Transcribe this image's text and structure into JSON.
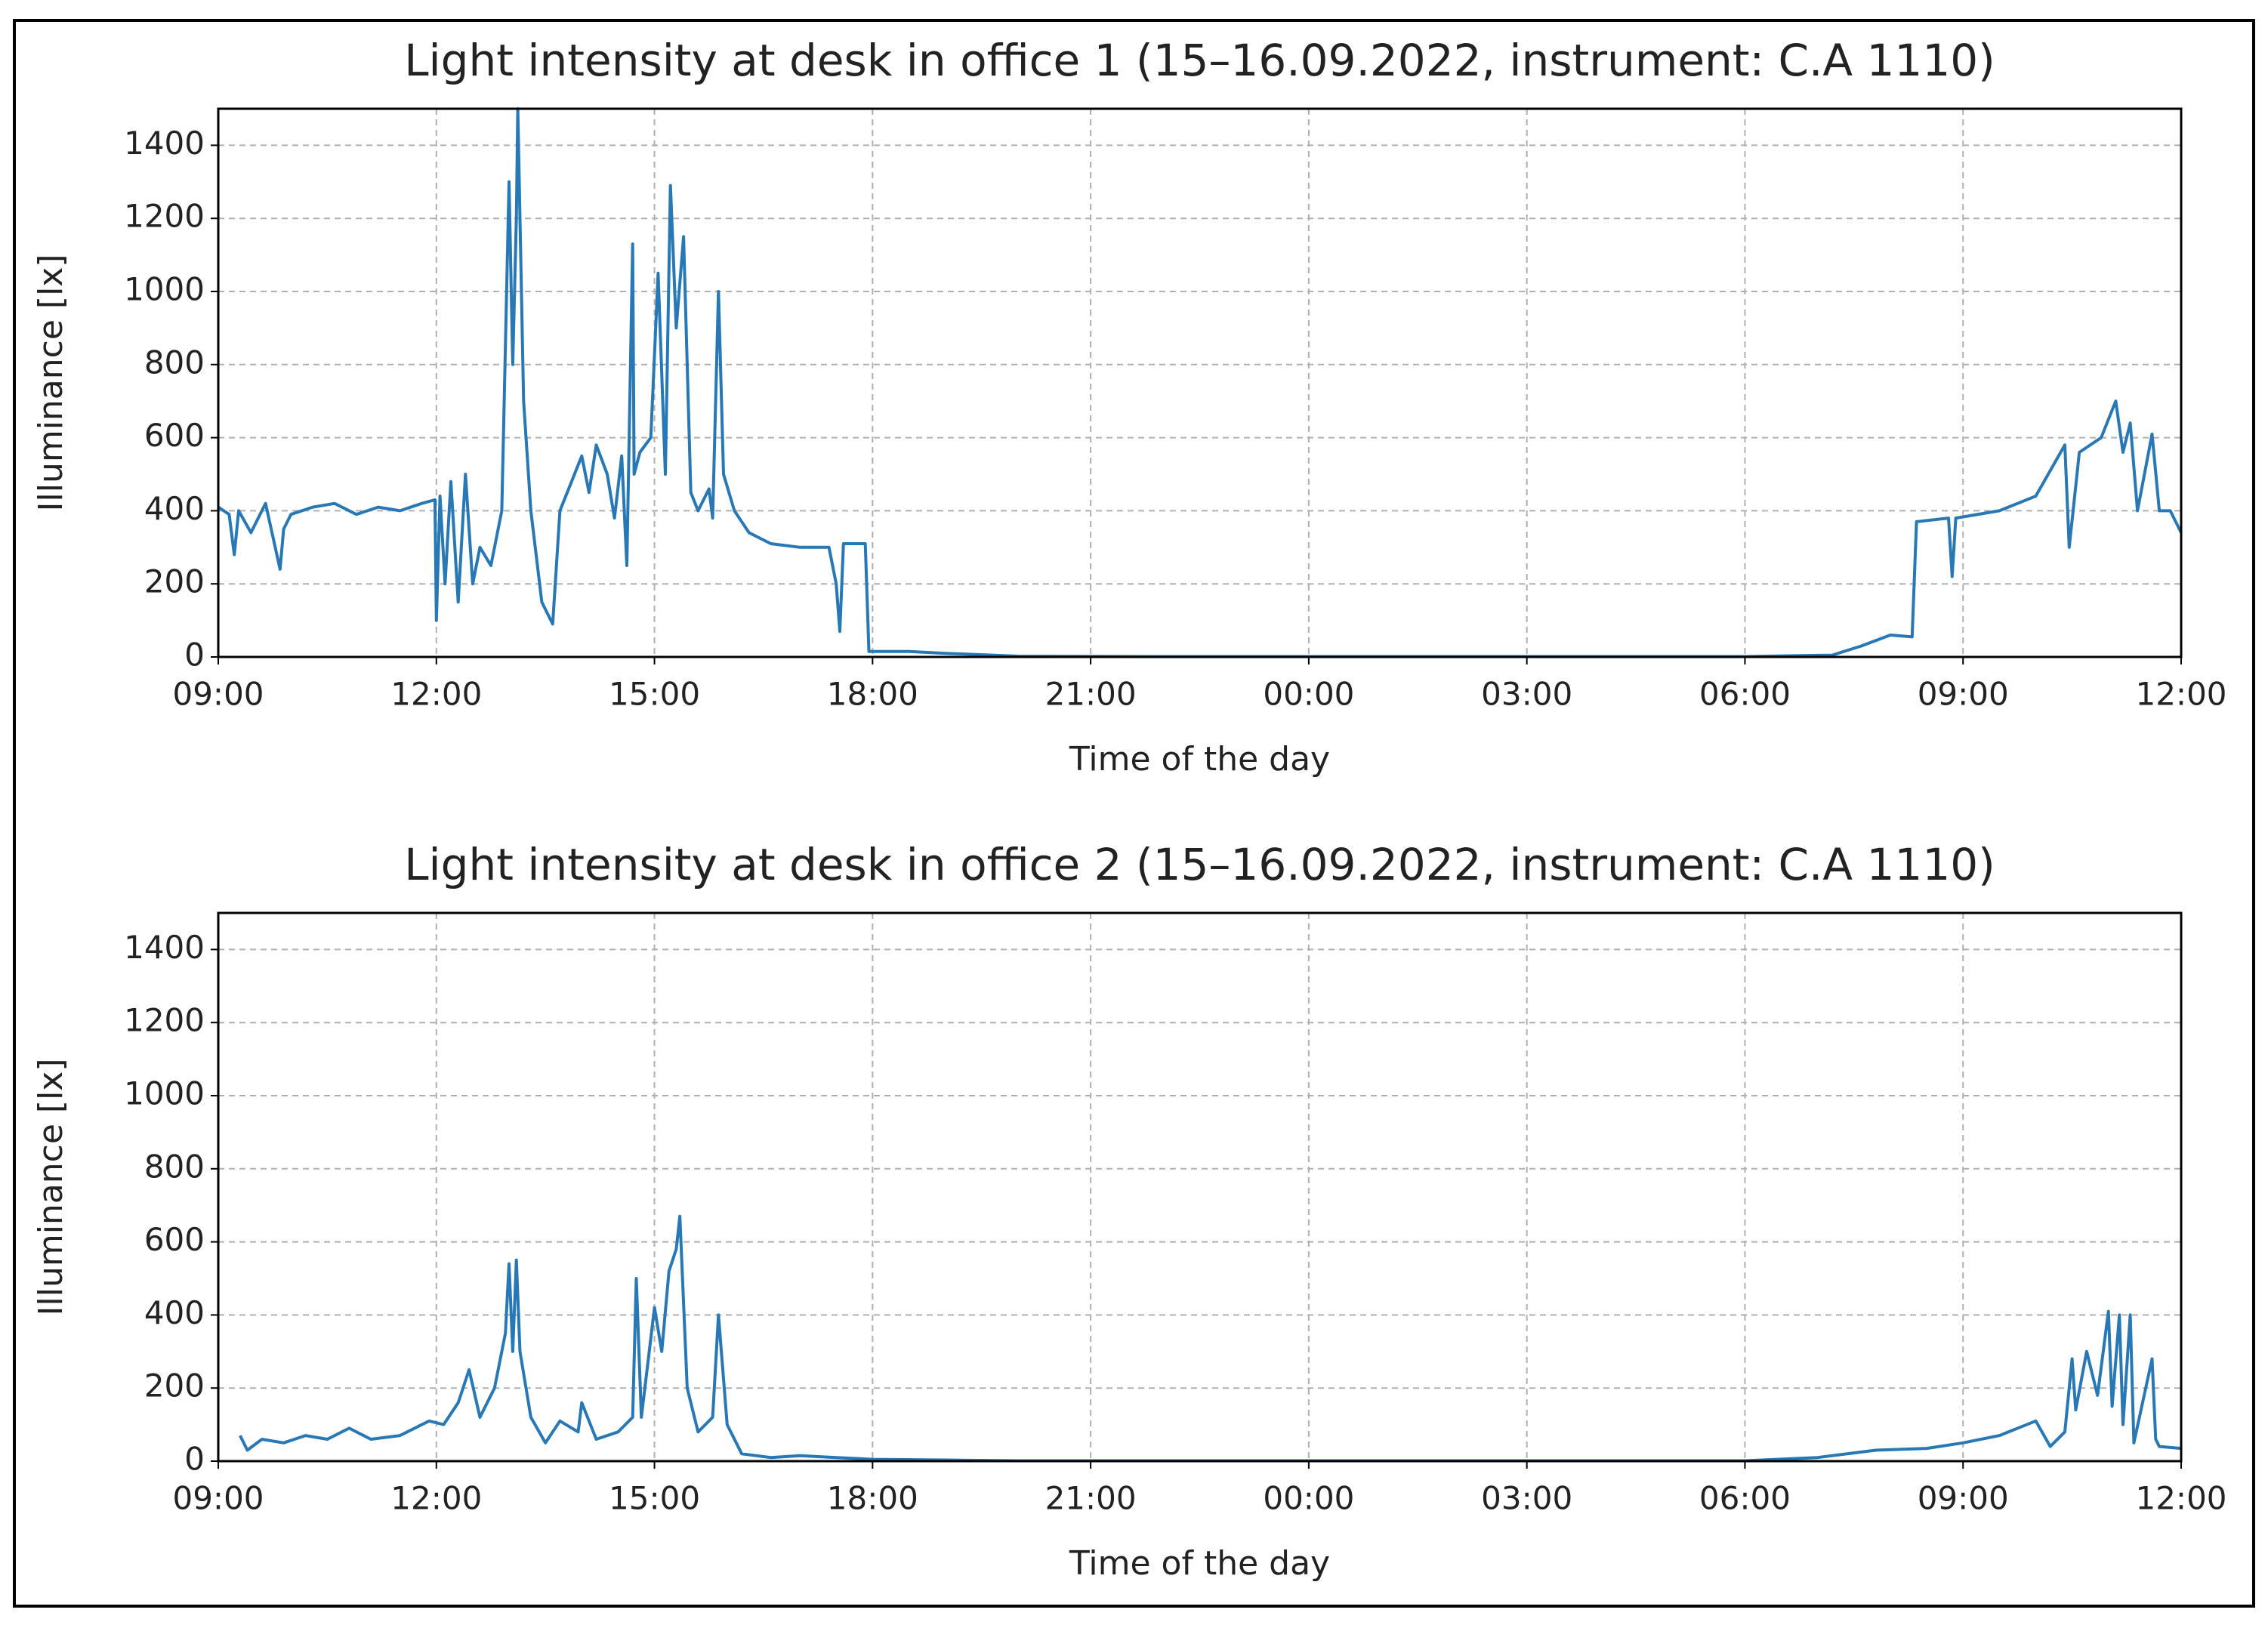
{
  "chart_data": [
    {
      "type": "line",
      "title": "Light intensity at desk in office 1 (15–16.09.2022, instrument: C.A 1110)",
      "x_label": "Time of the day",
      "y_label": "Illuminance [lx]",
      "color": "#2878b5",
      "grid": true,
      "xlim": [
        9,
        36
      ],
      "ylim": [
        0,
        1500
      ],
      "xticks": [
        {
          "value": 9,
          "label": "09:00"
        },
        {
          "value": 12,
          "label": "12:00"
        },
        {
          "value": 15,
          "label": "15:00"
        },
        {
          "value": 18,
          "label": "18:00"
        },
        {
          "value": 21,
          "label": "21:00"
        },
        {
          "value": 24,
          "label": "00:00"
        },
        {
          "value": 27,
          "label": "03:00"
        },
        {
          "value": 30,
          "label": "06:00"
        },
        {
          "value": 33,
          "label": "09:00"
        },
        {
          "value": 36,
          "label": "12:00"
        }
      ],
      "yticks": [
        0,
        200,
        400,
        600,
        800,
        1000,
        1200,
        1400
      ],
      "x": [
        9.0,
        9.15,
        9.22,
        9.28,
        9.45,
        9.65,
        9.85,
        9.9,
        10.0,
        10.3,
        10.6,
        10.9,
        11.2,
        11.5,
        11.8,
        11.98,
        12.0,
        12.05,
        12.12,
        12.2,
        12.3,
        12.4,
        12.5,
        12.6,
        12.75,
        12.9,
        13.0,
        13.05,
        13.1,
        13.12,
        13.2,
        13.3,
        13.45,
        13.6,
        13.7,
        13.9,
        14.0,
        14.1,
        14.2,
        14.35,
        14.45,
        14.55,
        14.62,
        14.7,
        14.72,
        14.8,
        14.95,
        15.05,
        15.15,
        15.22,
        15.3,
        15.4,
        15.5,
        15.6,
        15.75,
        15.8,
        15.88,
        15.95,
        16.1,
        16.3,
        16.6,
        17.0,
        17.4,
        17.5,
        17.55,
        17.6,
        17.9,
        17.95,
        18.5,
        19.0,
        20.0,
        22.0,
        26.0,
        30.0,
        31.2,
        31.6,
        32.0,
        32.3,
        32.36,
        32.8,
        32.85,
        32.9,
        33.5,
        34.0,
        34.4,
        34.46,
        34.6,
        34.9,
        35.1,
        35.2,
        35.3,
        35.4,
        35.6,
        35.7,
        35.85,
        36.0
      ],
      "values": [
        410,
        390,
        280,
        400,
        340,
        420,
        240,
        350,
        390,
        410,
        420,
        390,
        410,
        400,
        420,
        430,
        100,
        440,
        200,
        480,
        150,
        500,
        200,
        300,
        250,
        400,
        1300,
        800,
        1200,
        1500,
        700,
        400,
        150,
        90,
        400,
        500,
        550,
        450,
        580,
        500,
        380,
        550,
        250,
        1130,
        500,
        560,
        600,
        1050,
        500,
        1290,
        900,
        1150,
        450,
        400,
        460,
        380,
        1000,
        500,
        400,
        340,
        310,
        300,
        300,
        200,
        70,
        310,
        310,
        15,
        15,
        10,
        2,
        1,
        1,
        1,
        5,
        30,
        60,
        55,
        370,
        380,
        220,
        380,
        400,
        440,
        580,
        300,
        560,
        600,
        700,
        560,
        640,
        400,
        610,
        400,
        400,
        340
      ]
    },
    {
      "type": "line",
      "title": "Light intensity at desk in office 2 (15–16.09.2022, instrument: C.A 1110)",
      "x_label": "Time of the day",
      "y_label": "Illuminance [lx]",
      "color": "#2878b5",
      "grid": true,
      "xlim": [
        9,
        36
      ],
      "ylim": [
        0,
        1500
      ],
      "xticks": [
        {
          "value": 9,
          "label": "09:00"
        },
        {
          "value": 12,
          "label": "12:00"
        },
        {
          "value": 15,
          "label": "15:00"
        },
        {
          "value": 18,
          "label": "18:00"
        },
        {
          "value": 21,
          "label": "21:00"
        },
        {
          "value": 24,
          "label": "00:00"
        },
        {
          "value": 27,
          "label": "03:00"
        },
        {
          "value": 30,
          "label": "06:00"
        },
        {
          "value": 33,
          "label": "09:00"
        },
        {
          "value": 36,
          "label": "12:00"
        }
      ],
      "yticks": [
        0,
        200,
        400,
        600,
        800,
        1000,
        1200,
        1400
      ],
      "x": [
        9.3,
        9.4,
        9.6,
        9.9,
        10.2,
        10.5,
        10.8,
        11.1,
        11.5,
        11.9,
        12.1,
        12.3,
        12.45,
        12.6,
        12.8,
        12.95,
        13.0,
        13.05,
        13.1,
        13.15,
        13.3,
        13.5,
        13.7,
        13.95,
        14.0,
        14.2,
        14.5,
        14.7,
        14.75,
        14.82,
        15.0,
        15.1,
        15.2,
        15.3,
        15.35,
        15.45,
        15.6,
        15.8,
        15.88,
        16.0,
        16.2,
        16.6,
        17.0,
        17.5,
        18.0,
        19.0,
        20.0,
        22.0,
        26.0,
        30.0,
        31.0,
        31.8,
        32.5,
        33.0,
        33.5,
        34.0,
        34.2,
        34.4,
        34.5,
        34.55,
        34.7,
        34.85,
        35.0,
        35.05,
        35.15,
        35.2,
        35.3,
        35.35,
        35.6,
        35.65,
        35.7,
        36.0
      ],
      "values": [
        70,
        30,
        60,
        50,
        70,
        60,
        90,
        60,
        70,
        110,
        100,
        160,
        250,
        120,
        200,
        350,
        540,
        300,
        550,
        300,
        120,
        50,
        110,
        80,
        160,
        60,
        80,
        120,
        500,
        120,
        420,
        300,
        520,
        580,
        670,
        200,
        80,
        120,
        400,
        100,
        20,
        10,
        15,
        10,
        5,
        3,
        1,
        1,
        1,
        1,
        10,
        30,
        35,
        50,
        70,
        110,
        40,
        80,
        280,
        140,
        300,
        180,
        410,
        150,
        400,
        100,
        400,
        50,
        280,
        60,
        40,
        35
      ]
    }
  ]
}
